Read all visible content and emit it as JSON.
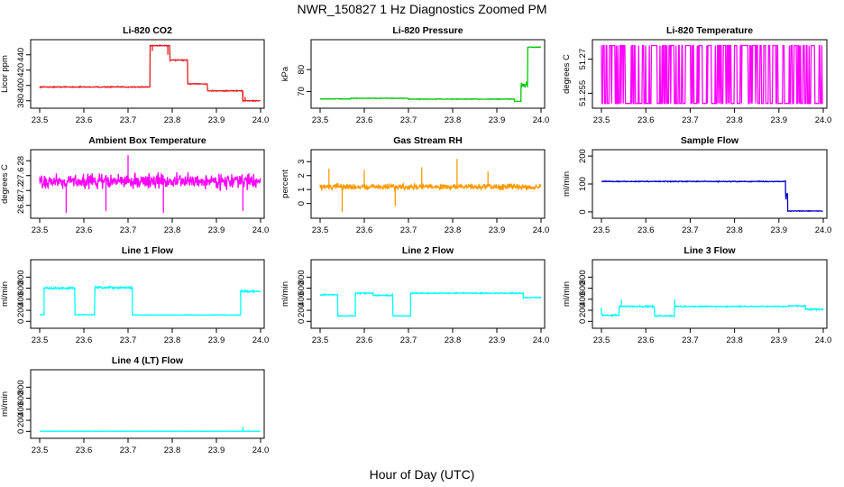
{
  "figure": {
    "title": "NWR_150827  1 Hz Diagnostics Zoomed PM",
    "xlabel": "Hour of Day (UTC)"
  },
  "chart_data": [
    {
      "type": "line",
      "title": "Li-820 CO2",
      "ylabel": "Licor ppm",
      "color": "#e41a1c",
      "xlim": [
        23.5,
        24.0
      ],
      "ylim": [
        375,
        455
      ],
      "xticks": [
        23.5,
        23.6,
        23.7,
        23.8,
        23.9,
        24.0
      ],
      "yticks": [
        380,
        400,
        420,
        440
      ],
      "segments": [
        [
          23.5,
          23.75,
          398,
          0.8
        ],
        [
          23.75,
          23.795,
          452,
          1.0
        ],
        [
          23.795,
          23.835,
          433,
          1.0
        ],
        [
          23.835,
          23.88,
          402,
          0.8
        ],
        [
          23.88,
          23.96,
          393,
          0.8
        ],
        [
          23.96,
          24.0,
          380,
          0.8
        ]
      ],
      "spikes": [
        [
          23.755,
          445
        ],
        [
          23.79,
          440
        ],
        [
          23.96,
          392
        ],
        [
          23.965,
          385
        ]
      ]
    },
    {
      "type": "line",
      "title": "Li-820 Pressure",
      "ylabel": "kPa",
      "color": "#00c800",
      "xlim": [
        23.5,
        24.0
      ],
      "ylim": [
        64,
        92
      ],
      "xticks": [
        23.5,
        23.6,
        23.7,
        23.8,
        23.9,
        24.0
      ],
      "yticks": [
        70,
        80
      ],
      "segments": [
        [
          23.5,
          23.57,
          66.6,
          0.2
        ],
        [
          23.57,
          23.7,
          66.9,
          0.2
        ],
        [
          23.7,
          23.94,
          66.5,
          0.2
        ],
        [
          23.94,
          23.955,
          65.5,
          0.1
        ],
        [
          23.955,
          23.97,
          73,
          2.0
        ],
        [
          23.97,
          24.0,
          90.2,
          0.2
        ]
      ],
      "spikes": []
    },
    {
      "type": "line",
      "title": "Li-820 Temperature",
      "ylabel": "degrees C",
      "color": "#ff00ff",
      "xlim": [
        23.5,
        24.0
      ],
      "ylim": [
        51.25,
        51.277
      ],
      "xticks": [
        23.5,
        23.6,
        23.7,
        23.8,
        23.9,
        24.0
      ],
      "yticks": [
        51.255,
        51.27
      ],
      "toggle": [
        51.2505,
        51.276
      ]
    },
    {
      "type": "line",
      "title": "Ambient Box Temperature",
      "ylabel": "degrees C",
      "color": "#ff00ff",
      "xlim": [
        23.5,
        24.0
      ],
      "ylim": [
        26.55,
        28.2
      ],
      "xticks": [
        23.5,
        23.6,
        23.7,
        23.8,
        23.9,
        24.0
      ],
      "yticks": [
        26.8,
        27.2,
        27.6,
        28.0
      ],
      "segments": [
        [
          23.5,
          24.0,
          27.45,
          0.28
        ]
      ],
      "spikes": [
        [
          23.7,
          28.15
        ],
        [
          23.56,
          26.6
        ],
        [
          23.65,
          26.65
        ],
        [
          23.78,
          26.6
        ],
        [
          23.96,
          26.65
        ]
      ]
    },
    {
      "type": "line",
      "title": "Gas Stream RH",
      "ylabel": "percent",
      "color": "#ff9900",
      "xlim": [
        23.5,
        24.0
      ],
      "ylim": [
        -0.8,
        3.6
      ],
      "xticks": [
        23.5,
        23.6,
        23.7,
        23.8,
        23.9,
        24.0
      ],
      "yticks": [
        0,
        1,
        2,
        3
      ],
      "segments": [
        [
          23.5,
          24.0,
          1.2,
          0.3
        ]
      ],
      "spikes": [
        [
          23.55,
          -0.6
        ],
        [
          23.81,
          3.2
        ],
        [
          23.6,
          2.4
        ],
        [
          23.73,
          2.6
        ],
        [
          23.52,
          2.5
        ],
        [
          23.67,
          -0.2
        ],
        [
          23.88,
          2.3
        ]
      ]
    },
    {
      "type": "line",
      "title": "Sample Flow",
      "ylabel": "ml/min",
      "color": "#0000cc",
      "xlim": [
        23.5,
        24.0
      ],
      "ylim": [
        -10,
        210
      ],
      "xticks": [
        23.5,
        23.6,
        23.7,
        23.8,
        23.9,
        24.0
      ],
      "yticks": [
        0,
        100,
        200
      ],
      "segments": [
        [
          23.5,
          23.915,
          109,
          2.0
        ],
        [
          23.915,
          23.92,
          60,
          20
        ],
        [
          23.92,
          24.0,
          3,
          1.5
        ]
      ],
      "spikes": []
    },
    {
      "type": "line",
      "title": "Line 1 Flow",
      "ylabel": "ml/min",
      "color": "#00ffff",
      "xlim": [
        23.5,
        24.0
      ],
      "ylim": [
        -60,
        1050
      ],
      "xticks": [
        23.5,
        23.6,
        23.7,
        23.8,
        23.9,
        24.0
      ],
      "yticks": [
        0,
        200,
        400,
        600,
        800
      ],
      "segments": [
        [
          23.5,
          23.51,
          120,
          5
        ],
        [
          23.51,
          23.58,
          600,
          25
        ],
        [
          23.58,
          23.625,
          120,
          8
        ],
        [
          23.625,
          23.71,
          610,
          25
        ],
        [
          23.71,
          23.955,
          115,
          6
        ],
        [
          23.955,
          24.0,
          545,
          25
        ]
      ],
      "spikes": []
    },
    {
      "type": "line",
      "title": "Line 2 Flow",
      "ylabel": "ml/min",
      "color": "#00ffff",
      "xlim": [
        23.5,
        24.0
      ],
      "ylim": [
        -60,
        1050
      ],
      "xticks": [
        23.5,
        23.6,
        23.7,
        23.8,
        23.9,
        24.0
      ],
      "yticks": [
        0,
        200,
        400,
        600,
        800
      ],
      "segments": [
        [
          23.5,
          23.54,
          480,
          15
        ],
        [
          23.54,
          23.58,
          100,
          8
        ],
        [
          23.58,
          23.62,
          510,
          15
        ],
        [
          23.62,
          23.665,
          470,
          15
        ],
        [
          23.665,
          23.705,
          100,
          8
        ],
        [
          23.705,
          23.96,
          510,
          12
        ],
        [
          23.96,
          24.0,
          430,
          15
        ]
      ],
      "spikes": []
    },
    {
      "type": "line",
      "title": "Line 3 Flow",
      "ylabel": "ml/min",
      "color": "#00ffff",
      "xlim": [
        23.5,
        24.0
      ],
      "ylim": [
        -60,
        1050
      ],
      "xticks": [
        23.5,
        23.6,
        23.7,
        23.8,
        23.9,
        24.0
      ],
      "yticks": [
        0,
        200,
        400,
        600,
        800
      ],
      "segments": [
        [
          23.5,
          23.54,
          110,
          15
        ],
        [
          23.54,
          23.62,
          270,
          18
        ],
        [
          23.62,
          23.665,
          100,
          15
        ],
        [
          23.665,
          23.92,
          270,
          15
        ],
        [
          23.92,
          23.96,
          280,
          15
        ],
        [
          23.96,
          24.0,
          220,
          25
        ]
      ],
      "spikes": [
        [
          23.5,
          250
        ],
        [
          23.545,
          400
        ],
        [
          23.665,
          400
        ]
      ]
    },
    {
      "type": "line",
      "title": "Line 4 (LT) Flow",
      "ylabel": "ml/min",
      "color": "#00ffff",
      "xlim": [
        23.5,
        24.0
      ],
      "ylim": [
        -60,
        1050
      ],
      "xticks": [
        23.5,
        23.6,
        23.7,
        23.8,
        23.9,
        24.0
      ],
      "yticks": [
        0,
        200,
        400,
        600,
        800
      ],
      "segments": [
        [
          23.5,
          24.0,
          2,
          2
        ]
      ],
      "spikes": [
        [
          23.96,
          80
        ]
      ]
    }
  ]
}
